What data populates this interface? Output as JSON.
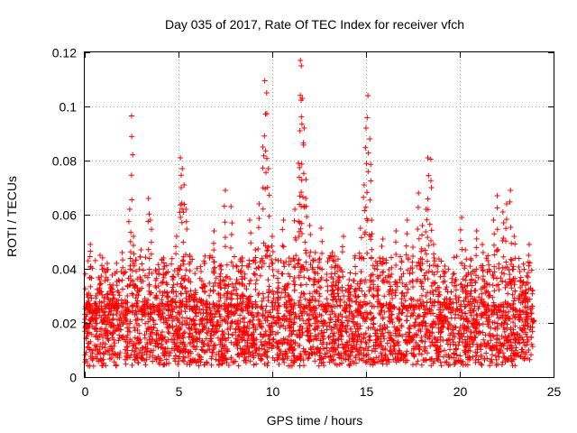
{
  "chart_data": {
    "type": "scatter",
    "title": "Day 035 of 2017, Rate Of TEC Index for receiver vfch",
    "xlabel": "GPS time / hours",
    "ylabel": "ROTI / TECUs",
    "xlim": [
      0,
      25
    ],
    "ylim": [
      0,
      0.12
    ],
    "xticks": [
      0,
      5,
      10,
      15,
      20,
      25
    ],
    "xtick_labels": [
      "0",
      "5",
      "10",
      "15",
      "20",
      "25"
    ],
    "yticks": [
      0,
      0.02,
      0.04,
      0.06,
      0.08,
      0.1,
      0.12
    ],
    "ytick_labels": [
      "0",
      "0.02",
      "0.04",
      "0.06",
      "0.08",
      "0.1",
      "0.12"
    ],
    "grid": true,
    "marker": "plus",
    "color": "#ff0000",
    "series": [
      {
        "name": "ROTI",
        "points": [
          [
            0.1,
            0.018
          ],
          [
            0.2,
            0.031
          ],
          [
            0.3,
            0.049
          ],
          [
            0.4,
            0.022
          ],
          [
            0.6,
            0.027
          ],
          [
            0.8,
            0.036
          ],
          [
            1.0,
            0.021
          ],
          [
            1.2,
            0.042
          ],
          [
            1.5,
            0.034
          ],
          [
            1.7,
            0.028
          ],
          [
            2.0,
            0.046
          ],
          [
            2.2,
            0.025
          ],
          [
            2.4,
            0.062
          ],
          [
            2.5,
            0.0965
          ],
          [
            2.6,
            0.052
          ],
          [
            2.8,
            0.033
          ],
          [
            3.0,
            0.047
          ],
          [
            3.2,
            0.029
          ],
          [
            3.4,
            0.066
          ],
          [
            3.5,
            0.058
          ],
          [
            3.8,
            0.039
          ],
          [
            4.0,
            0.027
          ],
          [
            4.2,
            0.044
          ],
          [
            4.4,
            0.031
          ],
          [
            4.7,
            0.036
          ],
          [
            4.9,
            0.052
          ],
          [
            5.1,
            0.081
          ],
          [
            5.2,
            0.077
          ],
          [
            5.3,
            0.071
          ],
          [
            5.4,
            0.062
          ],
          [
            5.6,
            0.045
          ],
          [
            5.9,
            0.032
          ],
          [
            6.2,
            0.039
          ],
          [
            6.5,
            0.028
          ],
          [
            6.9,
            0.054
          ],
          [
            7.2,
            0.041
          ],
          [
            7.5,
            0.069
          ],
          [
            7.8,
            0.063
          ],
          [
            8.1,
            0.036
          ],
          [
            8.4,
            0.044
          ],
          [
            8.8,
            0.058
          ],
          [
            9.1,
            0.047
          ],
          [
            9.3,
            0.064
          ],
          [
            9.5,
            0.085
          ],
          [
            9.6,
            0.1095
          ],
          [
            9.7,
            0.105
          ],
          [
            9.8,
            0.077
          ],
          [
            10.0,
            0.052
          ],
          [
            10.3,
            0.039
          ],
          [
            10.6,
            0.058
          ],
          [
            10.9,
            0.044
          ],
          [
            11.2,
            0.062
          ],
          [
            11.4,
            0.079
          ],
          [
            11.5,
            0.117
          ],
          [
            11.55,
            0.115
          ],
          [
            11.6,
            0.103
          ],
          [
            11.7,
            0.092
          ],
          [
            11.8,
            0.073
          ],
          [
            12.0,
            0.056
          ],
          [
            12.3,
            0.046
          ],
          [
            12.6,
            0.055
          ],
          [
            12.9,
            0.038
          ],
          [
            13.2,
            0.046
          ],
          [
            13.5,
            0.041
          ],
          [
            13.8,
            0.052
          ],
          [
            14.1,
            0.036
          ],
          [
            14.4,
            0.044
          ],
          [
            14.7,
            0.055
          ],
          [
            14.9,
            0.071
          ],
          [
            15.0,
            0.092
          ],
          [
            15.1,
            0.104
          ],
          [
            15.2,
            0.088
          ],
          [
            15.3,
            0.058
          ],
          [
            15.6,
            0.042
          ],
          [
            15.9,
            0.051
          ],
          [
            16.3,
            0.037
          ],
          [
            16.6,
            0.054
          ],
          [
            16.9,
            0.043
          ],
          [
            17.2,
            0.058
          ],
          [
            17.5,
            0.048
          ],
          [
            17.8,
            0.068
          ],
          [
            18.0,
            0.056
          ],
          [
            18.2,
            0.062
          ],
          [
            18.3,
            0.081
          ],
          [
            18.45,
            0.0805
          ],
          [
            18.6,
            0.049
          ],
          [
            18.9,
            0.033
          ],
          [
            19.2,
            0.041
          ],
          [
            19.5,
            0.028
          ],
          [
            19.8,
            0.036
          ],
          [
            20.1,
            0.059
          ],
          [
            20.3,
            0.047
          ],
          [
            20.6,
            0.038
          ],
          [
            20.9,
            0.054
          ],
          [
            21.2,
            0.049
          ],
          [
            21.5,
            0.043
          ],
          [
            21.8,
            0.058
          ],
          [
            22.0,
            0.067
          ],
          [
            22.3,
            0.061
          ],
          [
            22.5,
            0.064
          ],
          [
            22.7,
            0.069
          ],
          [
            22.9,
            0.052
          ],
          [
            23.2,
            0.039
          ],
          [
            23.5,
            0.034
          ],
          [
            23.7,
            0.049
          ],
          [
            23.9,
            0.021
          ]
        ],
        "baseline_band": {
          "x_range": [
            0,
            23.9
          ],
          "typical_range": [
            0.006,
            0.026
          ],
          "envelope_max": 0.045,
          "min_observed": 0.004
        }
      }
    ]
  }
}
